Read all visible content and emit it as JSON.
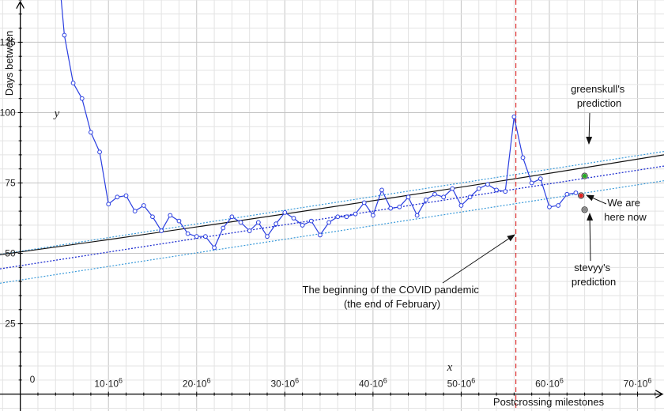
{
  "chart_data": {
    "type": "line",
    "title": "",
    "xlabel": "Postcrossing milestones",
    "ylabel": "Days between",
    "x_var": "x",
    "y_var": "y",
    "xlim": [
      -2300000,
      73000000
    ],
    "ylim": [
      -6,
      140
    ],
    "grid": true,
    "origin_label": "0",
    "x_ticks": [
      {
        "value": 10000000,
        "base": "10·10",
        "exp": "6"
      },
      {
        "value": 20000000,
        "base": "20·10",
        "exp": "6"
      },
      {
        "value": 30000000,
        "base": "30·10",
        "exp": "6"
      },
      {
        "value": 40000000,
        "base": "40·10",
        "exp": "6"
      },
      {
        "value": 50000000,
        "base": "50·10",
        "exp": "6"
      },
      {
        "value": 60000000,
        "base": "60·10",
        "exp": "6"
      },
      {
        "value": 70000000,
        "base": "70·10",
        "exp": "6"
      }
    ],
    "y_ticks": [
      {
        "value": 25,
        "label": "25"
      },
      {
        "value": 50,
        "label": "50"
      },
      {
        "value": 75,
        "label": "75"
      },
      {
        "value": 100,
        "label": "100"
      },
      {
        "value": 125,
        "label": "125"
      }
    ],
    "series": [
      {
        "role": "observed",
        "color": "#2b3fe0",
        "x": [
          5000000,
          6000000,
          7000000,
          8000000,
          9000000,
          10000000,
          11000000,
          12000000,
          13000000,
          14000000,
          15000000,
          16000000,
          17000000,
          18000000,
          19000000,
          20000000,
          21000000,
          22000000,
          23000000,
          24000000,
          25000000,
          26000000,
          27000000,
          28000000,
          29000000,
          30000000,
          31000000,
          32000000,
          33000000,
          34000000,
          35000000,
          36000000,
          37000000,
          38000000,
          39000000,
          40000000,
          41000000,
          42000000,
          43000000,
          44000000,
          45000000,
          46000000,
          47000000,
          48000000,
          49000000,
          50000000,
          51000000,
          52000000,
          53000000,
          54000000,
          55000000,
          56000000,
          57000000,
          58000000,
          59000000,
          60000000,
          61000000,
          62000000,
          63000000
        ],
        "y": [
          127.5,
          110.5,
          105,
          93,
          86,
          67.5,
          70,
          70.5,
          65,
          67,
          63,
          58,
          63.5,
          61.5,
          57,
          56,
          56,
          52,
          59,
          63,
          61,
          58,
          61,
          56,
          60.5,
          64.5,
          62.5,
          60,
          61.5,
          56.5,
          61,
          63,
          63,
          64,
          68,
          63.5,
          72.5,
          66,
          66.5,
          70,
          63.5,
          69,
          71,
          70,
          73,
          67,
          70,
          73,
          74.5,
          72.5,
          72,
          98.5,
          84,
          75,
          76.5,
          66.5,
          67,
          71,
          71.5
        ]
      }
    ],
    "trend": {
      "color": "#111111",
      "x": [
        -2300000,
        73000000
      ],
      "y": [
        49.5,
        85
      ]
    },
    "prediction_band": {
      "center_color": "#1f2fd0",
      "band_color": "#3a9ad9",
      "x": [
        -2300000,
        73000000
      ],
      "center": [
        44.5,
        81
      ],
      "upper": [
        49.6,
        86.2
      ],
      "lower": [
        39.4,
        75.8
      ]
    },
    "markers": [
      {
        "name": "greenskull's prediction point",
        "x": 64000000,
        "y": 77.5,
        "color": "#22aa22"
      },
      {
        "name": "current point",
        "x": 63600000,
        "y": 70.5,
        "color": "#e02020"
      },
      {
        "name": "stevyy's prediction point",
        "x": 64000000,
        "y": 65.5,
        "color": "#888888"
      }
    ],
    "vline": {
      "x": 56200000,
      "color": "#dd3333"
    },
    "annotations": [
      {
        "id": "covid",
        "lines": [
          "The beginning of the COVID pandemic",
          "(the end of February)"
        ]
      },
      {
        "id": "greenskull",
        "lines": [
          "greenskull's",
          "prediction"
        ]
      },
      {
        "id": "here",
        "lines": [
          "We are",
          "here now"
        ]
      },
      {
        "id": "stevyy",
        "lines": [
          "stevyy's",
          "prediction"
        ]
      }
    ]
  }
}
